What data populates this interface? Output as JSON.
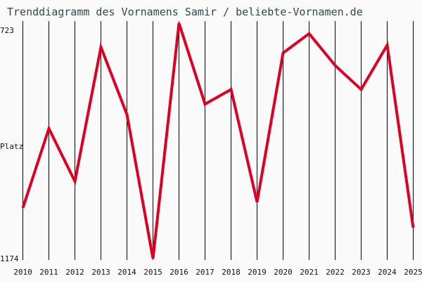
{
  "chart_data": {
    "type": "line",
    "title": "Trenddiagramm des Vornamens Samir / beliebte-Vornamen.de",
    "ylabel": "Platz",
    "y_inverted": true,
    "ylim": [
      723,
      1174
    ],
    "ytick_labels": [
      "723",
      "1174"
    ],
    "grid": "vertical",
    "x": [
      "2010",
      "2011",
      "2012",
      "2013",
      "2014",
      "2015",
      "2016",
      "2017",
      "2018",
      "2019",
      "2020",
      "2021",
      "2022",
      "2023",
      "2024",
      "2025"
    ],
    "series": [
      {
        "values": [
          1077,
          925,
          1026,
          769,
          898,
          1174,
          723,
          878,
          850,
          1066,
          780,
          743,
          804,
          850,
          765,
          1115
        ],
        "color": "#dd0022"
      }
    ]
  }
}
